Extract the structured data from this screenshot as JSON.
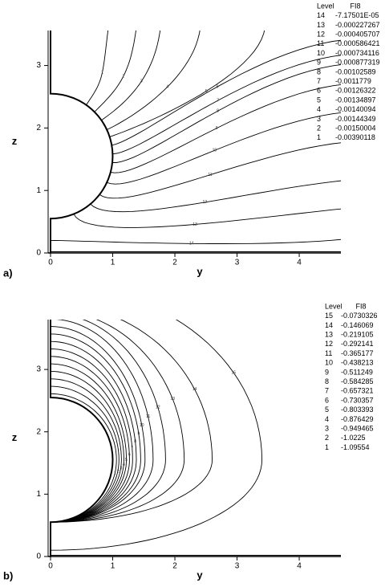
{
  "chart_data": [
    {
      "type": "contour",
      "panel_label": "a)",
      "xlabel": "y",
      "ylabel": "z",
      "xlim": [
        0,
        4.67
      ],
      "ylim": [
        0,
        3.56
      ],
      "xticks": [
        0,
        1,
        2,
        3,
        4
      ],
      "yticks": [
        0,
        1,
        2,
        3
      ],
      "legend_header": [
        "Level",
        "FI8"
      ],
      "levels": [
        14,
        13,
        12,
        11,
        10,
        9,
        8,
        7,
        6,
        5,
        4,
        3,
        2,
        1
      ],
      "values": [
        -7.17501e-05,
        -0.000227267,
        -0.000405707,
        -0.000586421,
        -0.000734116,
        -0.000877319,
        -0.00102589,
        -0.0011779,
        -0.00126322,
        -0.00134897,
        -0.00140094,
        -0.00144349,
        -0.00150004,
        -0.00390118
      ],
      "value_labels": [
        "-7.17501E-05",
        "-0.000227267",
        "-0.000405707",
        "-0.000586421",
        "-0.000734116",
        "-0.000877319",
        "-0.00102589",
        "-0.0011779",
        "-0.00126322",
        "-0.00134897",
        "-0.00140094",
        "-0.00144349",
        "-0.00150004",
        "-0.00390118"
      ],
      "color": "#000000"
    },
    {
      "type": "contour",
      "panel_label": "b)",
      "xlabel": "y",
      "ylabel": "z",
      "xlim": [
        0,
        4.67
      ],
      "ylim": [
        0,
        3.8
      ],
      "xticks": [
        0,
        1,
        2,
        3,
        4
      ],
      "yticks": [
        0,
        1,
        2,
        3
      ],
      "legend_header": [
        "Level",
        "FI8"
      ],
      "levels": [
        15,
        14,
        13,
        12,
        11,
        10,
        9,
        8,
        7,
        6,
        5,
        4,
        3,
        2,
        1
      ],
      "values": [
        -0.0730326,
        -0.146069,
        -0.219105,
        -0.292141,
        -0.365177,
        -0.438213,
        -0.511249,
        -0.584285,
        -0.657321,
        -0.730357,
        -0.803393,
        -0.876429,
        -0.949465,
        -1.0225,
        -1.09554
      ],
      "value_labels": [
        "-0.0730326",
        "-0.146069",
        "-0.219105",
        "-0.292141",
        "-0.365177",
        "-0.438213",
        "-0.511249",
        "-0.584285",
        "-0.657321",
        "-0.730357",
        "-0.803393",
        "-0.876429",
        "-0.949465",
        "-1.0225",
        "-1.09554"
      ],
      "color": "#000000"
    }
  ]
}
